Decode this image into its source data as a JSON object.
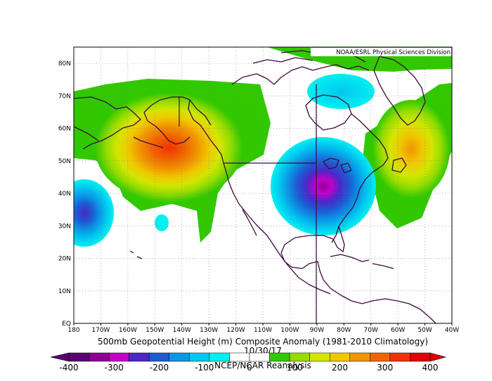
{
  "credit": "NOAA/ESRL Physical Sciences Division",
  "title": "500mb Geopotential Height (m) Composite Anomaly (1981-2010 Climatology)",
  "date": "10/30/17",
  "source": "NCEP/NCAR Reanalysis",
  "lon_labels": [
    "180",
    "170W",
    "160W",
    "150W",
    "140W",
    "130W",
    "120W",
    "110W",
    "100W",
    "90W",
    "80W",
    "70W",
    "60W",
    "50W",
    "40W"
  ],
  "lat_labels": [
    "EQ",
    "10N",
    "20N",
    "30N",
    "40N",
    "50N",
    "60N",
    "70N",
    "80N"
  ],
  "colorbar": {
    "labels": [
      "-400",
      "-300",
      "-200",
      "-100",
      "0",
      "100",
      "200",
      "300",
      "400"
    ],
    "colors": [
      "#5a0070",
      "#8c0096",
      "#c400c8",
      "#4a28c8",
      "#1e5ad2",
      "#0a96e6",
      "#00c8f0",
      "#00f0f0",
      "#ffffff",
      "#ffffff",
      "#32c800",
      "#96dc00",
      "#d2e600",
      "#f0c800",
      "#f09600",
      "#f06400",
      "#f03200",
      "#e10000"
    ]
  },
  "colors": {
    "land_outline": "#3c0a3c",
    "grid": "#808080",
    "frame": "#000000"
  }
}
